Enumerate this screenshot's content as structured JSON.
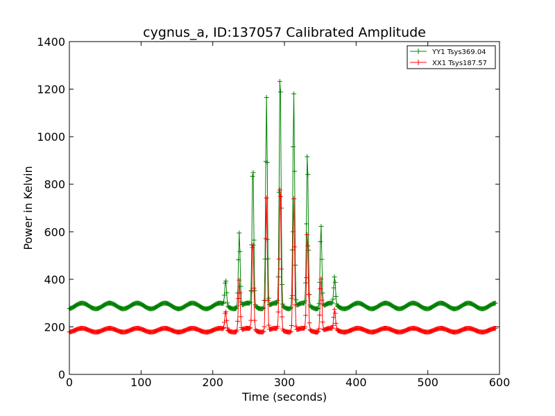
{
  "chart_data": {
    "type": "line",
    "title": "cygnus_a, ID:137057 Calibrated Amplitude",
    "xlabel": "Time (seconds)",
    "ylabel": "Power in Kelvin",
    "xlim": [
      0,
      600
    ],
    "ylim": [
      0,
      1400
    ],
    "xticks": [
      0,
      100,
      200,
      300,
      400,
      500,
      600
    ],
    "yticks": [
      0,
      200,
      400,
      600,
      800,
      1000,
      1200,
      1400
    ],
    "grid": false,
    "legend_position": "top-right",
    "marker": "+",
    "series": [
      {
        "name": "YY1 Tsys369.04",
        "color": "#008000",
        "baseline": 288,
        "ripple_amplitude": 12,
        "ripple_period_seconds": 38.5,
        "peaks": [
          {
            "x": 218,
            "y": 395
          },
          {
            "x": 237,
            "y": 600
          },
          {
            "x": 256,
            "y": 890
          },
          {
            "x": 275,
            "y": 1170
          },
          {
            "x": 294,
            "y": 1295
          },
          {
            "x": 313,
            "y": 1190
          },
          {
            "x": 332,
            "y": 935
          },
          {
            "x": 351,
            "y": 635
          },
          {
            "x": 370,
            "y": 405
          }
        ]
      },
      {
        "name": "XX1 Tsys187.57",
        "color": "#ff0000",
        "baseline": 186,
        "ripple_amplitude": 8,
        "ripple_period_seconds": 38.5,
        "peaks": [
          {
            "x": 218,
            "y": 265
          },
          {
            "x": 237,
            "y": 400
          },
          {
            "x": 256,
            "y": 570
          },
          {
            "x": 275,
            "y": 745
          },
          {
            "x": 294,
            "y": 815
          },
          {
            "x": 313,
            "y": 745
          },
          {
            "x": 332,
            "y": 600
          },
          {
            "x": 351,
            "y": 410
          },
          {
            "x": 370,
            "y": 270
          }
        ]
      }
    ]
  }
}
